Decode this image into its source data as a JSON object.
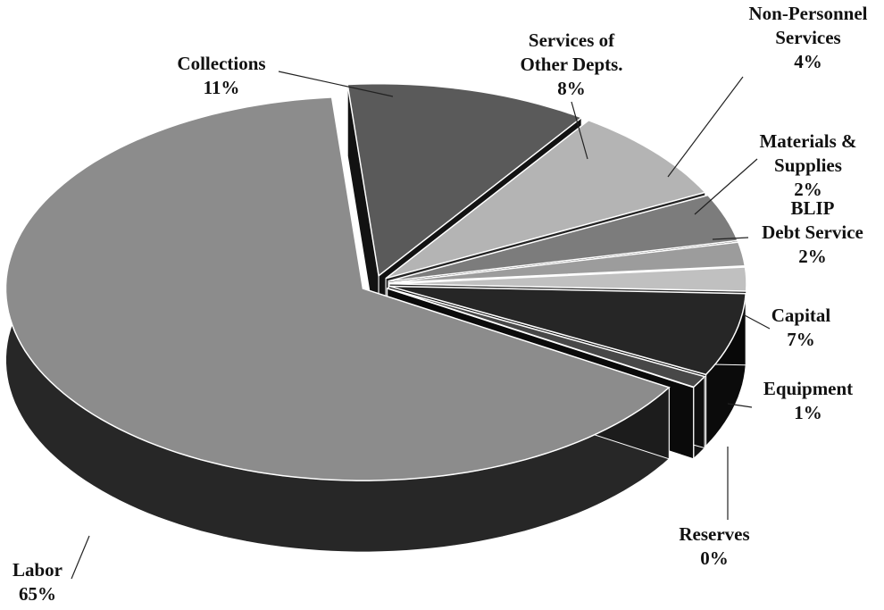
{
  "chart_data": {
    "type": "pie3d",
    "categories": [
      "Collections",
      "Services of\nOther Depts.",
      "Non-Personnel\nServices",
      "Materials &\nSupplies",
      "BLIP\nDebt Service",
      "Capital",
      "Equipment",
      "Reserves",
      "Labor"
    ],
    "values": [
      11,
      8,
      4,
      2,
      2,
      7,
      1,
      0,
      65
    ],
    "value_labels": [
      "11%",
      "8%",
      "4%",
      "2%",
      "2%",
      "7%",
      "1%",
      "0%",
      "65%"
    ],
    "colors": [
      "#5a5a5a",
      "#b4b4b4",
      "#7c7c7c",
      "#9c9c9c",
      "#c0c0c0",
      "#262626",
      "#484848",
      "#333333",
      "#8c8c8c"
    ]
  }
}
